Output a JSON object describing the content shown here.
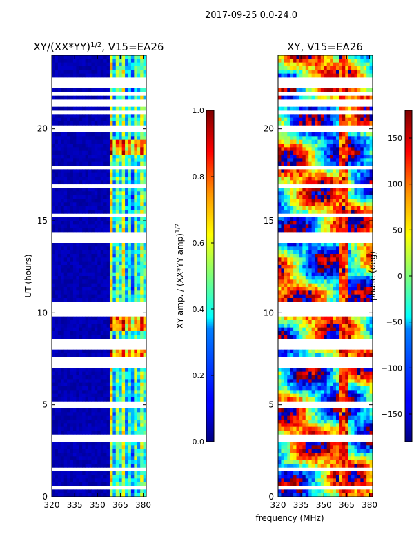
{
  "suptitle": "2017-09-25 0.0-24.0",
  "chart_data": [
    {
      "type": "heatmap",
      "title_main": "XY/(XX*YY)",
      "title_sup": "1/2",
      "title_tail": ", V15=EA26",
      "xlabel": "frequency (MHz)",
      "ylabel": "UT (hours)",
      "xlim": [
        320,
        382
      ],
      "ylim": [
        0,
        24
      ],
      "xticks": [
        320,
        335,
        350,
        365,
        380
      ],
      "yticks": [
        0,
        5,
        10,
        15,
        20
      ],
      "colorbar": {
        "label_main": "XY amp. / (XX*YY amp)",
        "label_sup": "1/2",
        "range": [
          0.0,
          1.0
        ],
        "ticks": [
          "0.0",
          "0.2",
          "0.4",
          "0.6",
          "0.8",
          "1.0"
        ]
      },
      "features": {
        "low_band_value": 0.05,
        "active_band_start_mhz": 359,
        "bright_bursts_hours": [
          [
            7.5,
            8.4
          ],
          [
            9.0,
            9.8
          ],
          [
            18.7,
            19.3
          ]
        ]
      }
    },
    {
      "type": "heatmap",
      "title": "XY, V15=EA26",
      "xlim": [
        320,
        382
      ],
      "ylim": [
        0,
        24
      ],
      "xticks": [
        320,
        335,
        350,
        365,
        380
      ],
      "yticks": [
        0,
        5,
        10,
        15,
        20
      ],
      "colorbar": {
        "label": "phase (deg)",
        "range": [
          -180,
          180
        ],
        "ticks": [
          "−150",
          "−100",
          "−50",
          "0",
          "50",
          "100",
          "150"
        ]
      }
    }
  ],
  "data_gaps_hours": [
    0.45,
    1.45,
    1.6,
    3.0,
    3.15,
    3.3,
    4.85,
    4.95,
    5.05,
    7.05,
    7.25,
    7.45,
    8.1,
    8.35,
    8.55,
    9.85,
    10.1,
    10.3,
    10.45,
    13.0,
    13.9,
    14.05,
    14.25,
    15.2,
    15.35,
    16.2,
    16.85,
    17.0,
    17.9,
    18.6,
    19.9,
    20.05,
    20.85,
    21.25,
    21.45,
    21.9,
    22.3,
    22.55,
    22.75
  ]
}
